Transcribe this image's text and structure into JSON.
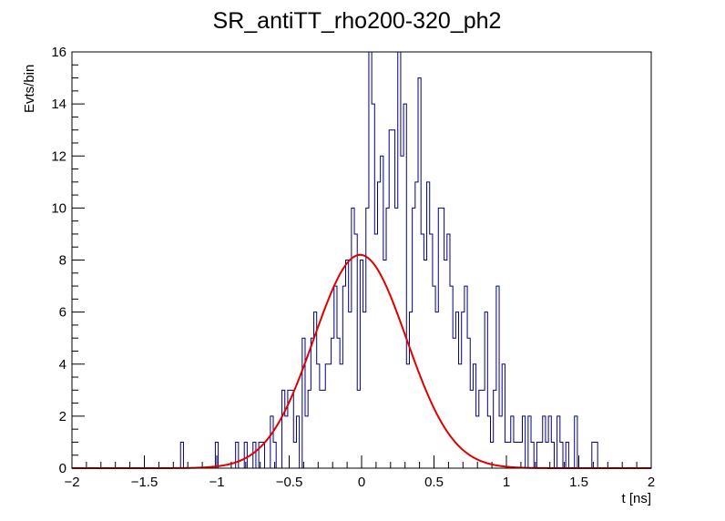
{
  "chart_data": {
    "type": "line",
    "title": "SR_antiTT_rho200-320_ph2",
    "xlabel": "t [ns]",
    "ylabel": "Evts/bin",
    "xlim": [
      -2,
      2
    ],
    "ylim": [
      0,
      16
    ],
    "x_ticks": [
      "−2",
      "−1.5",
      "−1",
      "−0.5",
      "0",
      "0.5",
      "1",
      "1.5",
      "2"
    ],
    "y_ticks": [
      "0",
      "2",
      "4",
      "6",
      "8",
      "10",
      "12",
      "14",
      "16"
    ],
    "grid": false,
    "legend": "none",
    "colors": {
      "histogram": "#000080",
      "fit": "#e00000"
    },
    "series": [
      {
        "kind": "histogram",
        "bin_low": -1.25,
        "bin_width": 0.02,
        "counts": [
          1,
          0,
          0,
          0,
          0,
          0,
          0,
          0,
          0,
          0,
          0,
          0,
          1,
          0,
          0,
          0,
          0,
          0,
          0,
          1,
          0,
          0,
          1,
          0,
          0,
          1,
          0,
          1,
          1,
          0,
          0,
          2,
          1,
          0,
          0,
          3,
          2,
          3,
          3,
          1,
          2,
          0,
          5,
          2,
          3,
          5,
          6,
          4,
          3,
          3,
          4,
          4,
          5,
          7,
          5,
          4,
          7,
          8,
          6,
          10,
          9,
          3,
          8,
          6,
          10,
          16,
          14,
          9,
          11,
          12,
          8,
          10,
          13,
          13,
          10,
          16,
          12,
          14,
          4,
          6,
          10,
          11,
          15,
          9,
          8,
          11,
          9,
          7,
          6,
          10,
          10,
          8,
          9,
          7,
          5,
          6,
          4,
          6,
          7,
          5,
          3,
          4,
          2,
          3,
          3,
          6,
          2,
          1,
          3,
          7,
          2,
          4,
          1,
          1,
          2,
          1,
          1,
          1,
          2,
          0,
          2,
          1,
          0,
          1,
          1,
          2,
          1,
          2,
          1,
          0,
          2,
          1,
          0,
          1,
          0,
          0,
          2,
          0,
          0,
          0,
          0,
          0,
          1,
          1
        ]
      },
      {
        "kind": "gaussian_fit",
        "amplitude": 8.2,
        "mean": -0.01,
        "sigma": 0.32
      }
    ]
  }
}
